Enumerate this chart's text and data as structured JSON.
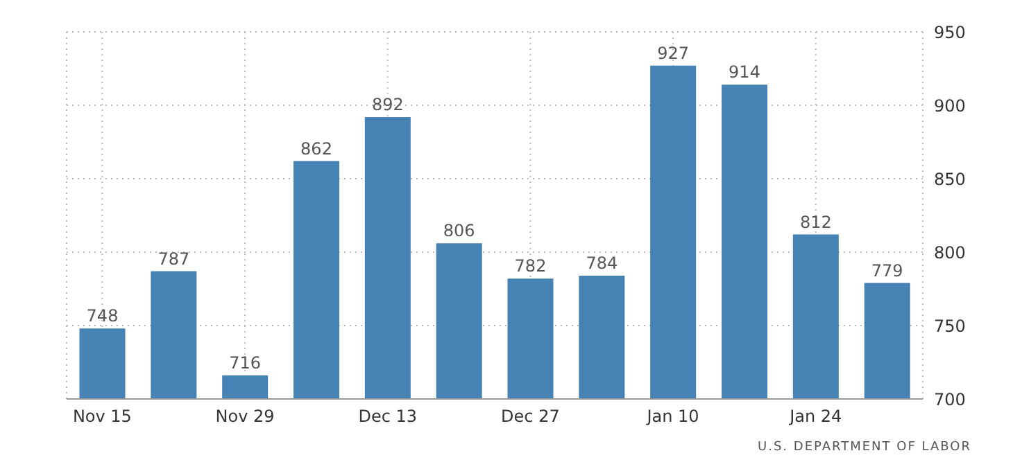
{
  "chart_data": {
    "type": "bar",
    "categories": [
      "Nov 15",
      null,
      "Nov 29",
      null,
      "Dec 13",
      null,
      "Dec 27",
      null,
      "Jan 10",
      null,
      "Jan 24",
      null
    ],
    "values": [
      748,
      787,
      716,
      862,
      892,
      806,
      782,
      784,
      927,
      914,
      812,
      779
    ],
    "color": "#4682b4",
    "ylim": [
      700,
      950
    ],
    "yticks": [
      700,
      750,
      800,
      850,
      900,
      950
    ],
    "grid": true,
    "data_labels": true,
    "annotations": [
      "U.S. DEPARTMENT OF LABOR"
    ]
  }
}
